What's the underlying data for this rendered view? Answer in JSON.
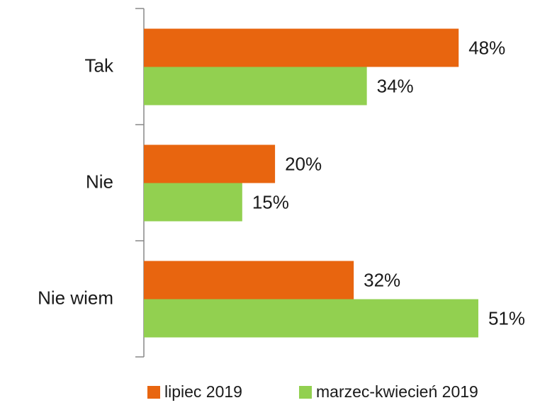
{
  "chart_data": {
    "type": "hbar",
    "categories": [
      "Tak",
      "Nie",
      "Nie wiem"
    ],
    "series": [
      {
        "name": "lipiec 2019",
        "color": "#e8650f",
        "values": [
          48,
          20,
          32
        ],
        "value_labels": [
          "48%",
          "20%",
          "32%"
        ]
      },
      {
        "name": "marzec-kwiecień 2019",
        "color": "#92d050",
        "values": [
          34,
          15,
          51
        ],
        "value_labels": [
          "34%",
          "15%",
          "51%"
        ]
      }
    ],
    "xlim": [
      0,
      55
    ],
    "legend": "bottom"
  }
}
